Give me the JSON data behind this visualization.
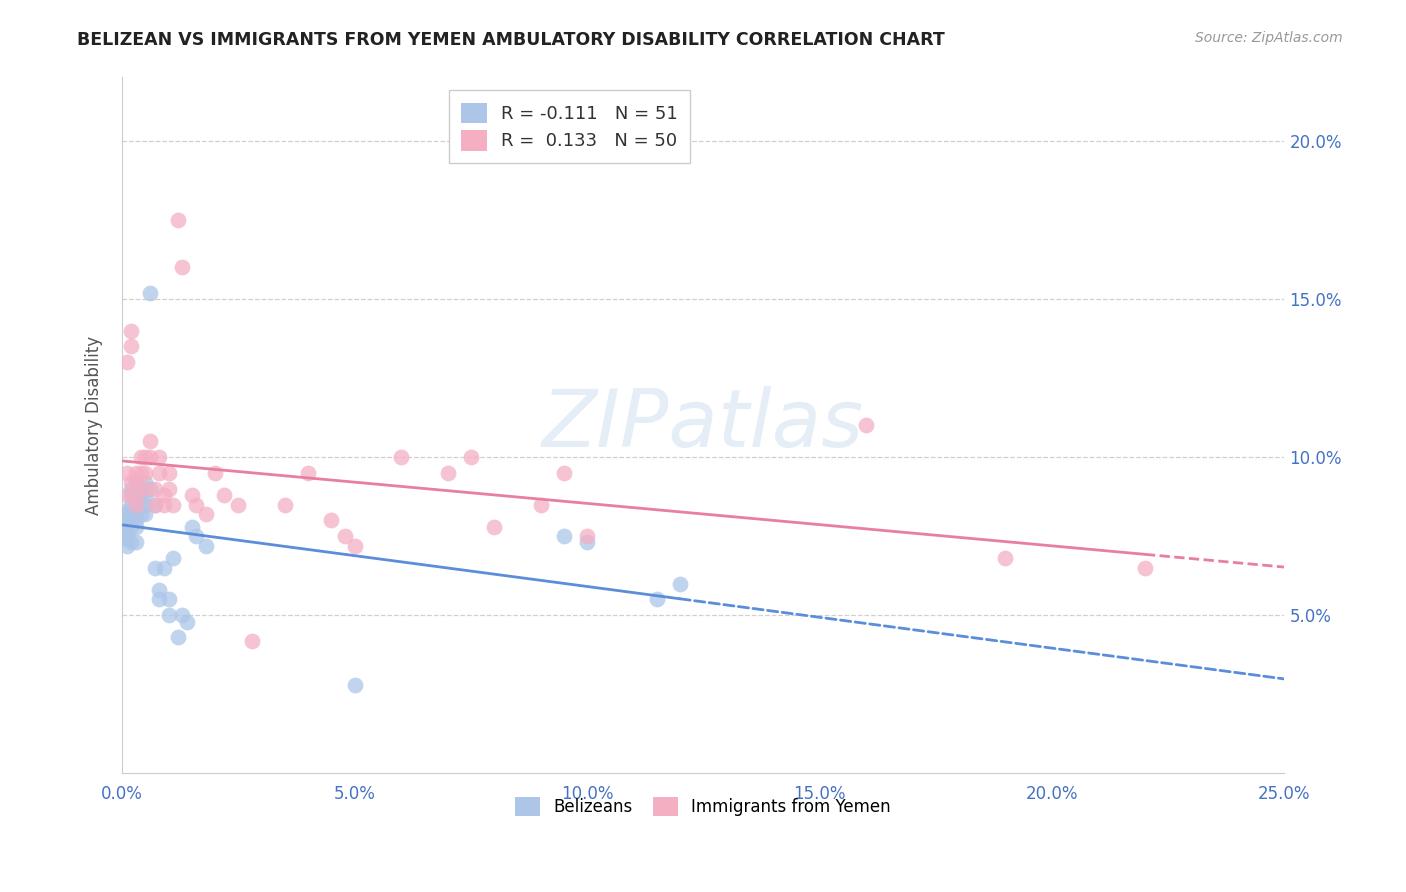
{
  "title": "BELIZEAN VS IMMIGRANTS FROM YEMEN AMBULATORY DISABILITY CORRELATION CHART",
  "source": "Source: ZipAtlas.com",
  "ylabel": "Ambulatory Disability",
  "xlim": [
    0.0,
    0.25
  ],
  "ylim": [
    0.0,
    0.22
  ],
  "xticks": [
    0.0,
    0.05,
    0.1,
    0.15,
    0.2,
    0.25
  ],
  "yticks": [
    0.05,
    0.1,
    0.15,
    0.2
  ],
  "xticklabels": [
    "0.0%",
    "5.0%",
    "10.0%",
    "15.0%",
    "20.0%",
    "25.0%"
  ],
  "yticklabels": [
    "5.0%",
    "10.0%",
    "15.0%",
    "20.0%"
  ],
  "legend1_r": "R = -0.111",
  "legend1_n": "N = 51",
  "legend2_r": "R =  0.133",
  "legend2_n": "N = 50",
  "legend1_color": "#adc6e8",
  "legend2_color": "#f4afc3",
  "line1_color": "#5b8dd9",
  "line2_color": "#e87fa0",
  "scatter1_color": "#adc6e8",
  "scatter2_color": "#f4afc3",
  "watermark": "ZIPatlas",
  "belizean_x": [
    0.0,
    0.001,
    0.001,
    0.001,
    0.001,
    0.001,
    0.001,
    0.001,
    0.002,
    0.002,
    0.002,
    0.002,
    0.002,
    0.002,
    0.002,
    0.003,
    0.003,
    0.003,
    0.003,
    0.003,
    0.003,
    0.003,
    0.004,
    0.004,
    0.004,
    0.004,
    0.005,
    0.005,
    0.005,
    0.005,
    0.006,
    0.006,
    0.007,
    0.007,
    0.008,
    0.008,
    0.009,
    0.01,
    0.01,
    0.011,
    0.012,
    0.013,
    0.014,
    0.015,
    0.016,
    0.018,
    0.05,
    0.095,
    0.1,
    0.115,
    0.12
  ],
  "belizean_y": [
    0.075,
    0.083,
    0.082,
    0.08,
    0.078,
    0.076,
    0.074,
    0.072,
    0.09,
    0.088,
    0.085,
    0.082,
    0.08,
    0.078,
    0.073,
    0.092,
    0.088,
    0.085,
    0.082,
    0.08,
    0.078,
    0.073,
    0.09,
    0.088,
    0.085,
    0.082,
    0.092,
    0.088,
    0.085,
    0.082,
    0.09,
    0.152,
    0.085,
    0.065,
    0.058,
    0.055,
    0.065,
    0.055,
    0.05,
    0.068,
    0.043,
    0.05,
    0.048,
    0.078,
    0.075,
    0.072,
    0.028,
    0.075,
    0.073,
    0.055,
    0.06
  ],
  "yemen_x": [
    0.001,
    0.001,
    0.001,
    0.002,
    0.002,
    0.002,
    0.003,
    0.003,
    0.003,
    0.003,
    0.004,
    0.004,
    0.005,
    0.005,
    0.005,
    0.006,
    0.006,
    0.007,
    0.007,
    0.008,
    0.008,
    0.009,
    0.009,
    0.01,
    0.01,
    0.011,
    0.012,
    0.013,
    0.015,
    0.016,
    0.018,
    0.02,
    0.022,
    0.025,
    0.028,
    0.035,
    0.04,
    0.045,
    0.048,
    0.05,
    0.06,
    0.07,
    0.075,
    0.08,
    0.09,
    0.095,
    0.1,
    0.16,
    0.19,
    0.22
  ],
  "yemen_y": [
    0.13,
    0.095,
    0.088,
    0.135,
    0.14,
    0.092,
    0.095,
    0.092,
    0.088,
    0.085,
    0.1,
    0.095,
    0.1,
    0.095,
    0.09,
    0.105,
    0.1,
    0.09,
    0.085,
    0.1,
    0.095,
    0.088,
    0.085,
    0.095,
    0.09,
    0.085,
    0.175,
    0.16,
    0.088,
    0.085,
    0.082,
    0.095,
    0.088,
    0.085,
    0.042,
    0.085,
    0.095,
    0.08,
    0.075,
    0.072,
    0.1,
    0.095,
    0.1,
    0.078,
    0.085,
    0.095,
    0.075,
    0.11,
    0.068,
    0.065
  ]
}
